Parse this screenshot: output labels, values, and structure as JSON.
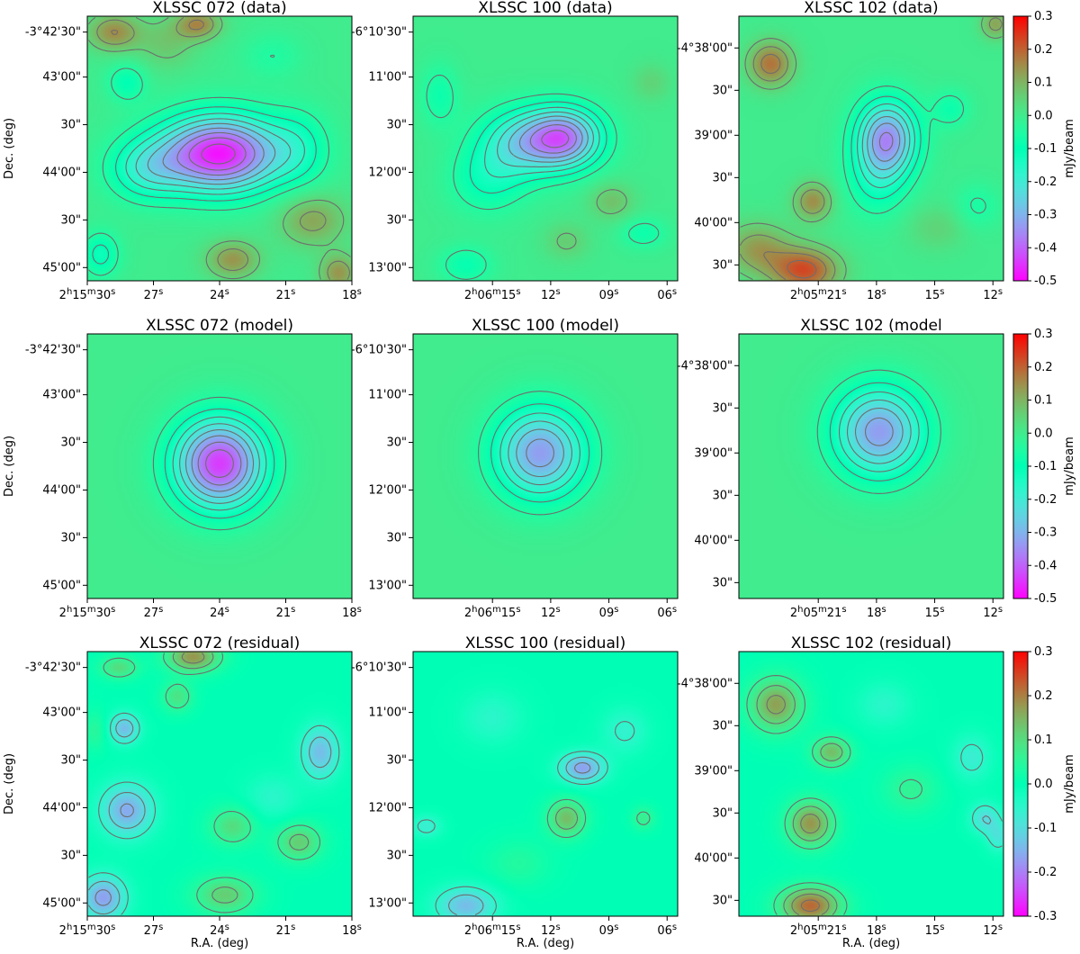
{
  "colormap": "rainbow",
  "contour_color": "#6e6e6e",
  "x_axis_label": "R.A. (deg)",
  "y_axis_label": "Dec. (deg)",
  "colorbar_label": "mJy/beam",
  "chart_data": [
    {
      "type": "heatmap",
      "title": "XLSSC 072 (data)",
      "row": 0,
      "col": 0,
      "xticks": [
        {
          "h": "2",
          "m": "15",
          "s": "30"
        },
        {
          "s": "27"
        },
        {
          "s": "24"
        },
        {
          "s": "21"
        },
        {
          "s": "18"
        }
      ],
      "yticks": [
        "-3°42'30\"",
        "43'00\"",
        "30\"",
        "44'00\"",
        "30\"",
        "45'00\""
      ],
      "blobs": [
        {
          "x": 0.5,
          "y": 0.52,
          "a": -0.48,
          "sx": 0.16,
          "sy": 0.1
        },
        {
          "x": 0.22,
          "y": 0.58,
          "a": -0.15,
          "sx": 0.1,
          "sy": 0.08
        },
        {
          "x": 0.8,
          "y": 0.5,
          "a": -0.09,
          "sx": 0.08,
          "sy": 0.1
        },
        {
          "x": 0.15,
          "y": 0.25,
          "a": -0.1,
          "sx": 0.05,
          "sy": 0.05
        },
        {
          "x": 0.55,
          "y": 0.92,
          "a": 0.14,
          "sx": 0.07,
          "sy": 0.05
        },
        {
          "x": 0.1,
          "y": 0.06,
          "a": 0.15,
          "sx": 0.07,
          "sy": 0.05
        },
        {
          "x": 0.42,
          "y": 0.03,
          "a": 0.15,
          "sx": 0.06,
          "sy": 0.04
        },
        {
          "x": 0.85,
          "y": 0.77,
          "a": 0.12,
          "sx": 0.09,
          "sy": 0.07
        },
        {
          "x": 0.95,
          "y": 0.97,
          "a": 0.14,
          "sx": 0.05,
          "sy": 0.05
        },
        {
          "x": 0.05,
          "y": 0.9,
          "a": -0.12,
          "sx": 0.05,
          "sy": 0.06
        },
        {
          "x": 0.3,
          "y": 0.1,
          "a": 0.07,
          "sx": 0.08,
          "sy": 0.07
        },
        {
          "x": 0.7,
          "y": 0.15,
          "a": -0.05,
          "sx": 0.08,
          "sy": 0.06
        }
      ]
    },
    {
      "type": "heatmap",
      "title": "XLSSC 100 (data)",
      "row": 0,
      "col": 1,
      "xticks": [
        {
          "h": "2",
          "m": "06",
          "s": "15"
        },
        {
          "s": "12"
        },
        {
          "s": "09"
        },
        {
          "s": "06"
        }
      ],
      "yticks": [
        "-6°10'30\"",
        "11'00\"",
        "30\"",
        "12'00\"",
        "30\"",
        "13'00\""
      ],
      "blobs": [
        {
          "x": 0.57,
          "y": 0.46,
          "a": -0.36,
          "sx": 0.1,
          "sy": 0.08
        },
        {
          "x": 0.4,
          "y": 0.48,
          "a": -0.2,
          "sx": 0.11,
          "sy": 0.09
        },
        {
          "x": 0.28,
          "y": 0.62,
          "a": -0.1,
          "sx": 0.1,
          "sy": 0.09
        },
        {
          "x": 0.1,
          "y": 0.3,
          "a": -0.08,
          "sx": 0.05,
          "sy": 0.08
        },
        {
          "x": 0.75,
          "y": 0.7,
          "a": 0.08,
          "sx": 0.06,
          "sy": 0.05
        },
        {
          "x": 0.87,
          "y": 0.82,
          "a": -0.08,
          "sx": 0.06,
          "sy": 0.04
        },
        {
          "x": 0.2,
          "y": 0.94,
          "a": -0.09,
          "sx": 0.07,
          "sy": 0.05
        },
        {
          "x": 0.58,
          "y": 0.85,
          "a": 0.06,
          "sx": 0.06,
          "sy": 0.05
        },
        {
          "x": 0.9,
          "y": 0.25,
          "a": 0.05,
          "sx": 0.05,
          "sy": 0.05
        }
      ]
    },
    {
      "type": "heatmap",
      "title": "XLSSC 102 (data)",
      "row": 0,
      "col": 2,
      "xticks": [
        {
          "h": "2",
          "m": "05",
          "s": "21"
        },
        {
          "s": "18"
        },
        {
          "s": "15"
        },
        {
          "s": "12"
        }
      ],
      "yticks": [
        "-4°38'00\"",
        "30\"",
        "39'00\"",
        "30\"",
        "40'00\"",
        "30\""
      ],
      "blobs": [
        {
          "x": 0.56,
          "y": 0.46,
          "a": -0.34,
          "sx": 0.08,
          "sy": 0.1
        },
        {
          "x": 0.52,
          "y": 0.62,
          "a": -0.1,
          "sx": 0.08,
          "sy": 0.1
        },
        {
          "x": 0.12,
          "y": 0.18,
          "a": 0.18,
          "sx": 0.06,
          "sy": 0.06
        },
        {
          "x": 0.28,
          "y": 0.7,
          "a": 0.15,
          "sx": 0.05,
          "sy": 0.05
        },
        {
          "x": 0.25,
          "y": 0.96,
          "a": 0.22,
          "sx": 0.09,
          "sy": 0.06
        },
        {
          "x": 0.07,
          "y": 0.88,
          "a": 0.13,
          "sx": 0.09,
          "sy": 0.07
        },
        {
          "x": 0.97,
          "y": 0.03,
          "a": 0.12,
          "sx": 0.04,
          "sy": 0.04
        },
        {
          "x": 0.8,
          "y": 0.35,
          "a": -0.08,
          "sx": 0.05,
          "sy": 0.05
        },
        {
          "x": 0.75,
          "y": 0.8,
          "a": 0.05,
          "sx": 0.08,
          "sy": 0.06
        },
        {
          "x": 0.9,
          "y": 0.72,
          "a": -0.06,
          "sx": 0.06,
          "sy": 0.06
        }
      ]
    },
    {
      "type": "heatmap",
      "title": "XLSSC 072 (model)",
      "row": 1,
      "col": 0,
      "xticks": [
        {
          "h": "2",
          "m": "15",
          "s": "30"
        },
        {
          "s": "27"
        },
        {
          "s": "24"
        },
        {
          "s": "21"
        },
        {
          "s": "18"
        }
      ],
      "yticks": [
        "-3°42'30\"",
        "43'00\"",
        "30\"",
        "44'00\"",
        "30\"",
        "45'00\""
      ],
      "blobs": [
        {
          "x": 0.5,
          "y": 0.49,
          "a": -0.44,
          "sx": 0.12,
          "sy": 0.12
        }
      ]
    },
    {
      "type": "heatmap",
      "title": "XLSSC 100 (model)",
      "row": 1,
      "col": 1,
      "xticks": [
        {
          "h": "2",
          "m": "06",
          "s": "15"
        },
        {
          "s": "12"
        },
        {
          "s": "09"
        },
        {
          "s": "06"
        }
      ],
      "yticks": [
        "-6°10'30\"",
        "11'00\"",
        "30\"",
        "12'00\"",
        "30\"",
        "13'00\""
      ],
      "blobs": [
        {
          "x": 0.48,
          "y": 0.45,
          "a": -0.33,
          "sx": 0.12,
          "sy": 0.12
        }
      ]
    },
    {
      "type": "heatmap",
      "title": "XLSSC 102 (model",
      "row": 1,
      "col": 2,
      "xticks": [
        {
          "h": "2",
          "m": "05",
          "s": "21"
        },
        {
          "s": "18"
        },
        {
          "s": "15"
        },
        {
          "s": "12"
        }
      ],
      "yticks": [
        "-4°38'00\"",
        "30\"",
        "39'00\"",
        "30\"",
        "40'00\"",
        "30\""
      ],
      "blobs": [
        {
          "x": 0.53,
          "y": 0.37,
          "a": -0.33,
          "sx": 0.12,
          "sy": 0.12
        }
      ]
    },
    {
      "type": "heatmap",
      "title": "XLSSC 072 (residual)",
      "row": 2,
      "col": 0,
      "xticks": [
        {
          "h": "2",
          "m": "15",
          "s": "30"
        },
        {
          "s": "27"
        },
        {
          "s": "24"
        },
        {
          "s": "21"
        },
        {
          "s": "18"
        }
      ],
      "yticks": [
        "-3°42'30\"",
        "43'00\"",
        "30\"",
        "44'00\"",
        "30\"",
        "45'00\""
      ],
      "blobs": [
        {
          "x": 0.14,
          "y": 0.29,
          "a": -0.14,
          "sx": 0.04,
          "sy": 0.04
        },
        {
          "x": 0.15,
          "y": 0.6,
          "a": -0.16,
          "sx": 0.07,
          "sy": 0.07
        },
        {
          "x": 0.06,
          "y": 0.93,
          "a": -0.17,
          "sx": 0.06,
          "sy": 0.06
        },
        {
          "x": 0.88,
          "y": 0.38,
          "a": -0.14,
          "sx": 0.05,
          "sy": 0.07
        },
        {
          "x": 0.4,
          "y": 0.02,
          "a": 0.18,
          "sx": 0.07,
          "sy": 0.04
        },
        {
          "x": 0.12,
          "y": 0.06,
          "a": 0.1,
          "sx": 0.05,
          "sy": 0.03
        },
        {
          "x": 0.34,
          "y": 0.17,
          "a": 0.09,
          "sx": 0.04,
          "sy": 0.04
        },
        {
          "x": 0.55,
          "y": 0.66,
          "a": 0.1,
          "sx": 0.06,
          "sy": 0.05
        },
        {
          "x": 0.8,
          "y": 0.72,
          "a": 0.12,
          "sx": 0.06,
          "sy": 0.05
        },
        {
          "x": 0.52,
          "y": 0.92,
          "a": 0.12,
          "sx": 0.08,
          "sy": 0.05
        },
        {
          "x": 0.03,
          "y": 0.3,
          "a": 0.05,
          "sx": 0.03,
          "sy": 0.05
        },
        {
          "x": 0.7,
          "y": 0.55,
          "a": -0.05,
          "sx": 0.07,
          "sy": 0.06
        }
      ]
    },
    {
      "type": "heatmap",
      "title": "XLSSC 100 (residual)",
      "row": 2,
      "col": 1,
      "xticks": [
        {
          "h": "2",
          "m": "06",
          "s": "15"
        },
        {
          "s": "12"
        },
        {
          "s": "09"
        },
        {
          "s": "06"
        }
      ],
      "yticks": [
        "-6°10'30\"",
        "11'00\"",
        "30\"",
        "12'00\"",
        "30\"",
        "13'00\""
      ],
      "blobs": [
        {
          "x": 0.64,
          "y": 0.44,
          "a": -0.17,
          "sx": 0.06,
          "sy": 0.04
        },
        {
          "x": 0.58,
          "y": 0.63,
          "a": 0.14,
          "sx": 0.05,
          "sy": 0.05
        },
        {
          "x": 0.87,
          "y": 0.63,
          "a": 0.07,
          "sx": 0.03,
          "sy": 0.03
        },
        {
          "x": 0.05,
          "y": 0.66,
          "a": -0.07,
          "sx": 0.04,
          "sy": 0.03
        },
        {
          "x": 0.2,
          "y": 0.96,
          "a": -0.14,
          "sx": 0.08,
          "sy": 0.05
        },
        {
          "x": 0.3,
          "y": 0.25,
          "a": -0.05,
          "sx": 0.08,
          "sy": 0.07
        },
        {
          "x": 0.8,
          "y": 0.3,
          "a": -0.06,
          "sx": 0.06,
          "sy": 0.06
        },
        {
          "x": 0.4,
          "y": 0.8,
          "a": 0.04,
          "sx": 0.08,
          "sy": 0.06
        }
      ]
    },
    {
      "type": "heatmap",
      "title": "XLSSC 102 (residual)",
      "row": 2,
      "col": 2,
      "xticks": [
        {
          "h": "2",
          "m": "05",
          "s": "21"
        },
        {
          "s": "18"
        },
        {
          "s": "15"
        },
        {
          "s": "12"
        }
      ],
      "yticks": [
        "-4°38'00\"",
        "30\"",
        "39'00\"",
        "30\"",
        "40'00\"",
        "30\""
      ],
      "blobs": [
        {
          "x": 0.14,
          "y": 0.2,
          "a": 0.17,
          "sx": 0.07,
          "sy": 0.07
        },
        {
          "x": 0.35,
          "y": 0.38,
          "a": 0.14,
          "sx": 0.05,
          "sy": 0.04
        },
        {
          "x": 0.27,
          "y": 0.65,
          "a": 0.18,
          "sx": 0.06,
          "sy": 0.06
        },
        {
          "x": 0.27,
          "y": 0.96,
          "a": 0.22,
          "sx": 0.08,
          "sy": 0.05
        },
        {
          "x": 0.93,
          "y": 0.63,
          "a": -0.1,
          "sx": 0.04,
          "sy": 0.04
        },
        {
          "x": 0.88,
          "y": 0.4,
          "a": -0.07,
          "sx": 0.05,
          "sy": 0.06
        },
        {
          "x": 0.65,
          "y": 0.52,
          "a": 0.06,
          "sx": 0.07,
          "sy": 0.06
        },
        {
          "x": 0.55,
          "y": 0.2,
          "a": -0.05,
          "sx": 0.07,
          "sy": 0.06
        },
        {
          "x": 0.98,
          "y": 0.7,
          "a": -0.08,
          "sx": 0.03,
          "sy": 0.04
        }
      ]
    }
  ],
  "colorbars": [
    {
      "row": 0,
      "min": -0.5,
      "max": 0.3,
      "ticks": [
        "0.3",
        "0.2",
        "0.1",
        "0.0",
        "-0.1",
        "-0.2",
        "-0.3",
        "-0.4",
        "-0.5"
      ]
    },
    {
      "row": 1,
      "min": -0.5,
      "max": 0.3,
      "ticks": [
        "0.3",
        "0.2",
        "0.1",
        "0.0",
        "-0.1",
        "-0.2",
        "-0.3",
        "-0.4",
        "-0.5"
      ]
    },
    {
      "row": 2,
      "min": -0.3,
      "max": 0.3,
      "ticks": [
        "0.3",
        "0.2",
        "0.1",
        "0.0",
        "-0.1",
        "-0.2",
        "-0.3"
      ]
    }
  ]
}
